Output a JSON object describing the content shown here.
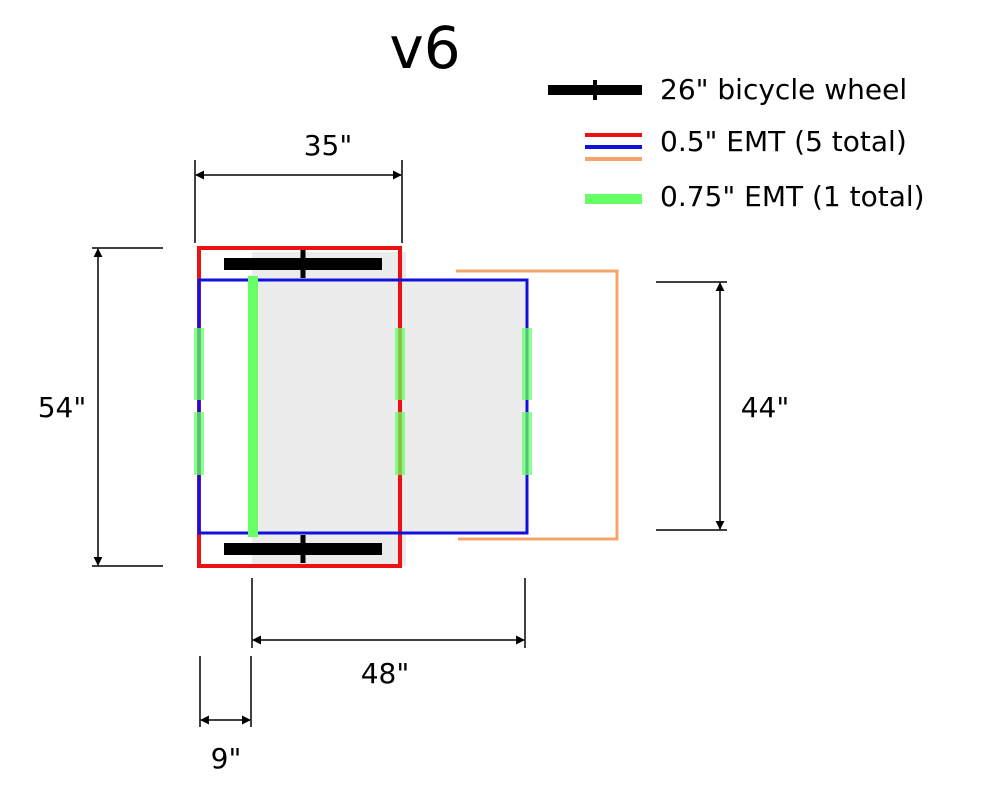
{
  "title": "v6",
  "legend": [
    {
      "label": "26\" bicycle wheel",
      "icon": "wheel-swatch",
      "colors": [
        "#000000"
      ]
    },
    {
      "label": "0.5\" EMT (5 total)",
      "icon": "emt-half-inch-swatch",
      "colors": [
        "#ee1111",
        "#1111dd",
        "#f4a46a"
      ]
    },
    {
      "label": "0.75\" EMT (1 total)",
      "icon": "emt-three-quarter-inch-swatch",
      "colors": [
        "#66ff66"
      ]
    }
  ],
  "dimensions": {
    "frame_width": "35\"",
    "frame_length": "54\"",
    "extension_length": "48\"",
    "offset": "9\"",
    "extension_width": "44\""
  },
  "colors": {
    "red_frame": "#ee1111",
    "blue_frame": "#1111dd",
    "orange_frame": "#f4a46a",
    "green_tube": "#66ff66",
    "panel_fill": "#ececec",
    "wheel": "#000000"
  }
}
